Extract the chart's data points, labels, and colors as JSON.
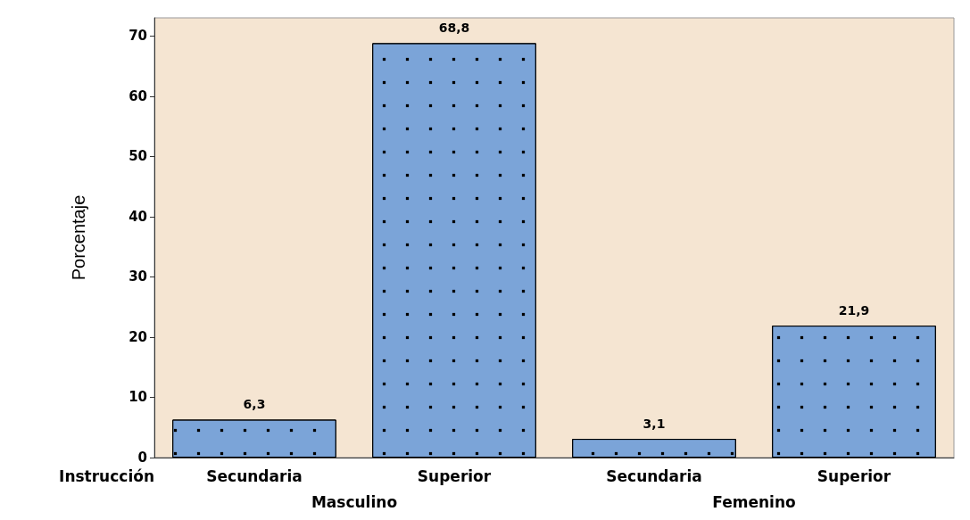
{
  "chart_data": {
    "type": "bar",
    "xlabel": "Instrucción",
    "ylabel": "Porcentaje",
    "categories": [
      "Secundaria",
      "Superior",
      "Secundaria",
      "Superior"
    ],
    "values": [
      6.3,
      68.8,
      3.1,
      21.9
    ],
    "value_labels": [
      "6,3",
      "68,8",
      "3,1",
      "21,9"
    ],
    "color": "#7ba4d8",
    "ylim": [
      0,
      73
    ],
    "yticks": [
      0,
      10,
      20,
      30,
      40,
      50,
      60,
      70
    ],
    "annotations": [
      "Masculino",
      "Femenino"
    ]
  }
}
